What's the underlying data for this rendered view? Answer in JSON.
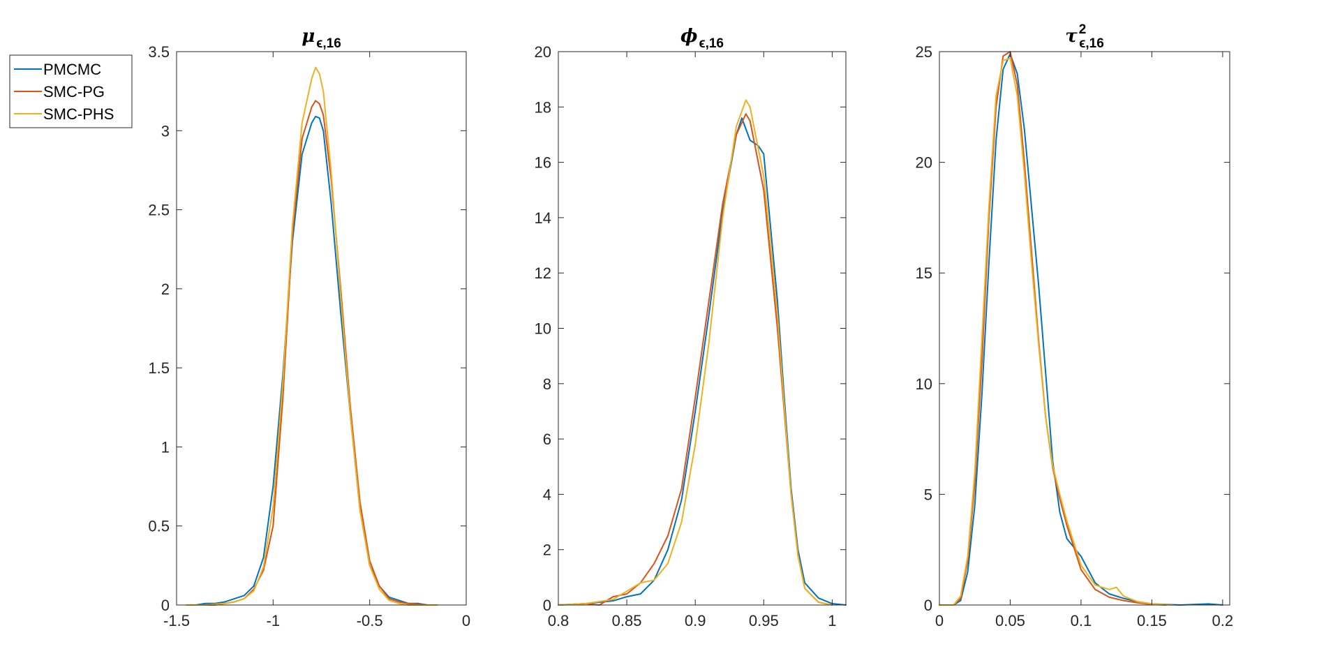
{
  "legend": {
    "entries": [
      {
        "name": "PMCMC",
        "color": "#0072BD"
      },
      {
        "name": "SMC-PG",
        "color": "#D95319"
      },
      {
        "name": "SMC-PHS",
        "color": "#EDB120"
      }
    ]
  },
  "chart_data": [
    {
      "type": "line",
      "title": {
        "main": "μ",
        "sub": "ϵ,16",
        "sup": ""
      },
      "xlim": [
        -1.5,
        0
      ],
      "ylim": [
        0,
        3.5
      ],
      "xticks": [
        -1.5,
        -1,
        -0.5,
        0
      ],
      "xtick_labels": [
        "-1.5",
        "-1",
        "-0.5",
        "0"
      ],
      "yticks": [
        0,
        0.5,
        1,
        1.5,
        2,
        2.5,
        3,
        3.5
      ],
      "ytick_labels": [
        "0",
        "0.5",
        "1",
        "1.5",
        "2",
        "2.5",
        "3",
        "3.5"
      ],
      "grid": false,
      "series": [
        {
          "name": "PMCMC",
          "color": "#0072BD",
          "x": [
            -1.4,
            -1.35,
            -1.3,
            -1.25,
            -1.2,
            -1.15,
            -1.1,
            -1.05,
            -1.0,
            -0.95,
            -0.9,
            -0.85,
            -0.8,
            -0.78,
            -0.76,
            -0.74,
            -0.7,
            -0.65,
            -0.6,
            -0.55,
            -0.5,
            -0.45,
            -0.4,
            -0.35,
            -0.3,
            -0.25,
            -0.2
          ],
          "y": [
            0.0,
            0.01,
            0.01,
            0.02,
            0.04,
            0.06,
            0.12,
            0.3,
            0.75,
            1.45,
            2.3,
            2.85,
            3.05,
            3.09,
            3.08,
            3.0,
            2.55,
            1.85,
            1.2,
            0.6,
            0.25,
            0.12,
            0.05,
            0.03,
            0.01,
            0.01,
            0.0
          ]
        },
        {
          "name": "SMC-PG",
          "color": "#D95319",
          "x": [
            -1.4,
            -1.3,
            -1.25,
            -1.2,
            -1.15,
            -1.1,
            -1.05,
            -1.0,
            -0.95,
            -0.9,
            -0.85,
            -0.8,
            -0.78,
            -0.76,
            -0.74,
            -0.7,
            -0.65,
            -0.6,
            -0.55,
            -0.5,
            -0.45,
            -0.4,
            -0.35,
            -0.3,
            -0.2
          ],
          "y": [
            0.0,
            0.0,
            0.01,
            0.02,
            0.04,
            0.1,
            0.22,
            0.5,
            1.3,
            2.35,
            2.95,
            3.15,
            3.19,
            3.17,
            3.1,
            2.7,
            2.0,
            1.25,
            0.65,
            0.28,
            0.12,
            0.04,
            0.02,
            0.01,
            0.0
          ]
        },
        {
          "name": "SMC-PHS",
          "color": "#EDB120",
          "x": [
            -1.45,
            -1.35,
            -1.25,
            -1.2,
            -1.15,
            -1.1,
            -1.05,
            -1.0,
            -0.95,
            -0.9,
            -0.85,
            -0.8,
            -0.78,
            -0.76,
            -0.74,
            -0.7,
            -0.65,
            -0.6,
            -0.55,
            -0.5,
            -0.45,
            -0.4,
            -0.35,
            -0.3,
            -0.2,
            -0.15
          ],
          "y": [
            0.0,
            0.0,
            0.01,
            0.02,
            0.04,
            0.09,
            0.24,
            0.62,
            1.4,
            2.4,
            3.05,
            3.33,
            3.4,
            3.36,
            3.25,
            2.75,
            1.95,
            1.2,
            0.6,
            0.25,
            0.1,
            0.03,
            0.01,
            0.0,
            0.0,
            0.0
          ]
        }
      ]
    },
    {
      "type": "line",
      "title": {
        "main": "ϕ",
        "sub": "ϵ,16",
        "sup": ""
      },
      "xlim": [
        0.8,
        1.01
      ],
      "ylim": [
        0,
        20
      ],
      "xticks": [
        0.8,
        0.85,
        0.9,
        0.95,
        1.0
      ],
      "xtick_labels": [
        "0.8",
        "0.85",
        "0.9",
        "0.95",
        "1"
      ],
      "yticks": [
        0,
        2,
        4,
        6,
        8,
        10,
        12,
        14,
        16,
        18,
        20
      ],
      "ytick_labels": [
        "0",
        "2",
        "4",
        "6",
        "8",
        "10",
        "12",
        "14",
        "16",
        "18",
        "20"
      ],
      "grid": false,
      "series": [
        {
          "name": "PMCMC",
          "color": "#0072BD",
          "x": [
            0.8,
            0.82,
            0.83,
            0.84,
            0.85,
            0.86,
            0.87,
            0.88,
            0.89,
            0.9,
            0.91,
            0.92,
            0.93,
            0.934,
            0.94,
            0.946,
            0.95,
            0.96,
            0.965,
            0.97,
            0.975,
            0.98,
            0.99,
            1.0,
            1.01
          ],
          "y": [
            0.0,
            0.05,
            0.1,
            0.15,
            0.3,
            0.4,
            0.9,
            2.0,
            3.8,
            7.0,
            10.5,
            14.2,
            17.0,
            17.6,
            16.8,
            16.6,
            16.3,
            11.0,
            7.5,
            4.2,
            2.0,
            0.8,
            0.25,
            0.05,
            0.0
          ]
        },
        {
          "name": "SMC-PG",
          "color": "#D95319",
          "x": [
            0.8,
            0.82,
            0.83,
            0.84,
            0.85,
            0.86,
            0.87,
            0.88,
            0.89,
            0.9,
            0.91,
            0.92,
            0.93,
            0.937,
            0.94,
            0.95,
            0.96,
            0.965,
            0.97,
            0.975,
            0.98,
            0.99,
            1.0
          ],
          "y": [
            0.0,
            0.05,
            0.0,
            0.3,
            0.4,
            0.8,
            1.5,
            2.5,
            4.2,
            7.5,
            11.0,
            14.5,
            17.0,
            17.75,
            17.5,
            15.0,
            10.0,
            7.0,
            4.0,
            1.8,
            0.6,
            0.1,
            0.0
          ]
        },
        {
          "name": "SMC-PHS",
          "color": "#EDB120",
          "x": [
            0.8,
            0.82,
            0.84,
            0.85,
            0.86,
            0.87,
            0.88,
            0.89,
            0.9,
            0.91,
            0.92,
            0.93,
            0.937,
            0.94,
            0.95,
            0.96,
            0.965,
            0.97,
            0.975,
            0.98,
            0.99,
            1.0
          ],
          "y": [
            0.0,
            0.05,
            0.2,
            0.5,
            0.8,
            0.9,
            1.5,
            3.0,
            5.8,
            9.5,
            14.0,
            17.3,
            18.25,
            18.0,
            15.5,
            10.5,
            7.2,
            4.0,
            1.8,
            0.6,
            0.1,
            0.0
          ]
        }
      ]
    },
    {
      "type": "line",
      "title": {
        "main": "τ",
        "sub": "ϵ,16",
        "sup": "2"
      },
      "xlim": [
        0,
        0.205
      ],
      "ylim": [
        0,
        25
      ],
      "xticks": [
        0,
        0.05,
        0.1,
        0.15,
        0.2
      ],
      "xtick_labels": [
        "0",
        "0.05",
        "0.1",
        "0.15",
        "0.2"
      ],
      "yticks": [
        0,
        5,
        10,
        15,
        20,
        25
      ],
      "ytick_labels": [
        "0",
        "5",
        "10",
        "15",
        "20",
        "25"
      ],
      "grid": false,
      "series": [
        {
          "name": "PMCMC",
          "color": "#0072BD",
          "x": [
            0.0,
            0.01,
            0.015,
            0.02,
            0.025,
            0.03,
            0.035,
            0.04,
            0.045,
            0.05,
            0.055,
            0.06,
            0.065,
            0.07,
            0.075,
            0.08,
            0.085,
            0.09,
            0.095,
            0.1,
            0.11,
            0.12,
            0.13,
            0.14,
            0.15,
            0.17,
            0.19,
            0.2
          ],
          "y": [
            0.0,
            0.0,
            0.2,
            1.5,
            4.5,
            9.5,
            15.5,
            21.0,
            24.2,
            24.9,
            24.0,
            21.5,
            18.0,
            14.5,
            10.5,
            6.5,
            4.2,
            3.0,
            2.6,
            2.2,
            1.0,
            0.5,
            0.3,
            0.15,
            0.05,
            0.0,
            0.05,
            0.0
          ]
        },
        {
          "name": "SMC-PG",
          "color": "#D95319",
          "x": [
            0.0,
            0.01,
            0.015,
            0.02,
            0.025,
            0.03,
            0.035,
            0.04,
            0.045,
            0.05,
            0.055,
            0.06,
            0.065,
            0.07,
            0.075,
            0.08,
            0.085,
            0.09,
            0.095,
            0.1,
            0.11,
            0.12,
            0.13,
            0.14,
            0.15,
            0.16
          ],
          "y": [
            0.0,
            0.0,
            0.3,
            2.0,
            5.5,
            11.0,
            17.5,
            22.5,
            24.8,
            25.0,
            23.5,
            20.0,
            16.0,
            12.0,
            8.5,
            6.2,
            4.8,
            3.6,
            2.6,
            1.6,
            0.7,
            0.35,
            0.2,
            0.1,
            0.03,
            0.0
          ]
        },
        {
          "name": "SMC-PHS",
          "color": "#EDB120",
          "x": [
            0.0,
            0.01,
            0.015,
            0.02,
            0.025,
            0.03,
            0.035,
            0.04,
            0.045,
            0.05,
            0.055,
            0.06,
            0.065,
            0.07,
            0.075,
            0.08,
            0.085,
            0.09,
            0.095,
            0.1,
            0.11,
            0.12,
            0.125,
            0.13,
            0.14,
            0.15,
            0.165
          ],
          "y": [
            0.0,
            0.0,
            0.4,
            2.2,
            6.0,
            12.0,
            18.0,
            23.0,
            24.6,
            24.7,
            23.0,
            19.5,
            15.5,
            11.8,
            8.5,
            6.3,
            5.0,
            3.8,
            2.8,
            1.8,
            0.9,
            0.7,
            0.8,
            0.4,
            0.15,
            0.05,
            0.0
          ]
        }
      ]
    }
  ]
}
